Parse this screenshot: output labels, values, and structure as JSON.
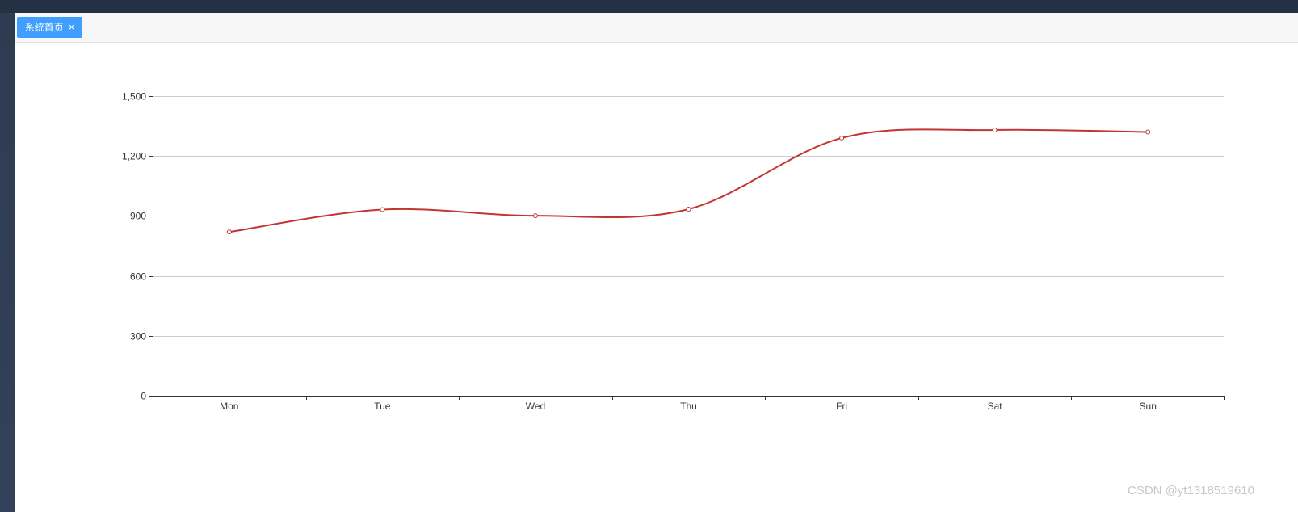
{
  "tabs": [
    {
      "label": "系统首页",
      "close_icon": "×"
    }
  ],
  "watermark": "CSDN @yt1318519610",
  "colors": {
    "line": "#c23531",
    "tab_active": "#409eff",
    "topbar": "#243043",
    "sidebar": "#324159"
  },
  "chart_data": {
    "type": "line",
    "smooth": true,
    "categories": [
      "Mon",
      "Tue",
      "Wed",
      "Thu",
      "Fri",
      "Sat",
      "Sun"
    ],
    "series": [
      {
        "values": [
          820,
          932,
          901,
          934,
          1290,
          1330,
          1320
        ]
      }
    ],
    "ylim": [
      0,
      1500
    ],
    "yticks": [
      0,
      300,
      600,
      900,
      1200,
      1500
    ],
    "ytick_labels": [
      "0",
      "300",
      "600",
      "900",
      "1,200",
      "1,500"
    ],
    "grid": true,
    "title": "",
    "xlabel": "",
    "ylabel": ""
  }
}
